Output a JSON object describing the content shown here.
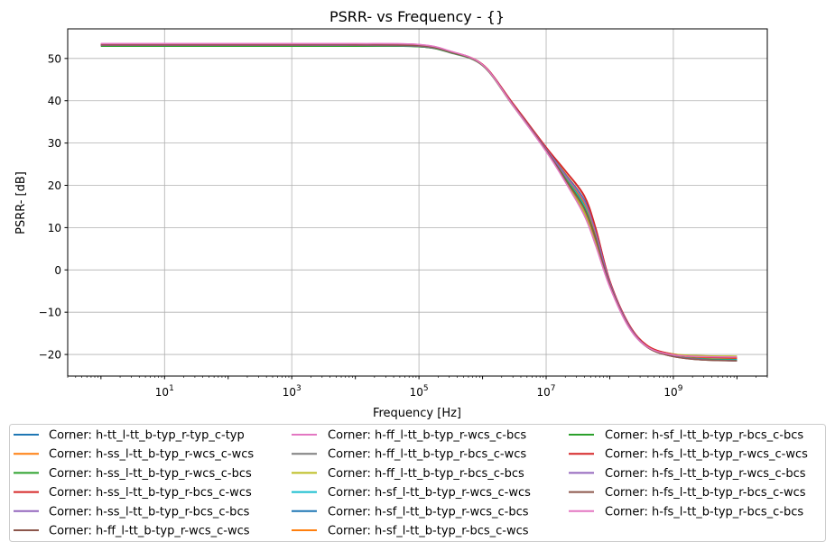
{
  "chart_data": {
    "type": "line",
    "title": "PSRR- vs Frequency - {}",
    "xlabel": "Frequency [Hz]",
    "ylabel": "PSRR- [dB]",
    "xscale": "log",
    "xlim": [
      0.3,
      30000000000
    ],
    "ylim": [
      -25.1,
      57
    ],
    "grid": true,
    "legend_placement": "bottom, below axes, 3 columns",
    "x_ticks": [
      {
        "value": 10,
        "base": "10",
        "exp": "1"
      },
      {
        "value": 1000,
        "base": "10",
        "exp": "3"
      },
      {
        "value": 100000,
        "base": "10",
        "exp": "5"
      },
      {
        "value": 10000000,
        "base": "10",
        "exp": "7"
      },
      {
        "value": 1000000000,
        "base": "10",
        "exp": "9"
      }
    ],
    "y_ticks": [
      {
        "value": -20,
        "label": "−20"
      },
      {
        "value": -10,
        "label": "−10"
      },
      {
        "value": 0,
        "label": "0"
      },
      {
        "value": 10,
        "label": "10"
      },
      {
        "value": 20,
        "label": "20"
      },
      {
        "value": 30,
        "label": "30"
      },
      {
        "value": 40,
        "label": "40"
      },
      {
        "value": 50,
        "label": "50"
      }
    ],
    "x": [
      1,
      10,
      100,
      1000,
      10000,
      100000,
      300000,
      1000000,
      3000000,
      10000000,
      20000000,
      40000000,
      60000000,
      100000000,
      200000000,
      400000000,
      1000000000,
      3000000000,
      10000000000
    ],
    "series": [
      {
        "name": "Corner: h-tt_l-tt_b-typ_r-typ_c-typ",
        "color": "#1f77b4",
        "values": [
          53.2,
          53.2,
          53.2,
          53.2,
          53.2,
          53.0,
          51.6,
          48.5,
          39.2,
          28.6,
          22.0,
          15.5,
          8.0,
          -3.0,
          -13.2,
          -18.2,
          -20.2,
          -21.0,
          -21.2
        ]
      },
      {
        "name": "Corner: h-ss_l-tt_b-typ_r-wcs_c-wcs",
        "color": "#ff7f0e",
        "values": [
          53.4,
          53.4,
          53.4,
          53.4,
          53.4,
          53.2,
          51.7,
          48.5,
          39.2,
          28.8,
          22.8,
          16.5,
          9.0,
          -2.8,
          -13.0,
          -18.0,
          -20.0,
          -20.6,
          -20.8
        ]
      },
      {
        "name": "Corner: h-ss_l-tt_b-typ_r-wcs_c-bcs",
        "color": "#2ca02c",
        "values": [
          52.9,
          52.9,
          52.9,
          52.9,
          52.9,
          52.8,
          51.5,
          48.4,
          39.1,
          28.5,
          22.2,
          15.8,
          8.5,
          -3.0,
          -13.2,
          -18.2,
          -20.3,
          -21.0,
          -21.3
        ]
      },
      {
        "name": "Corner: h-ss_l-tt_b-typ_r-bcs_c-wcs",
        "color": "#d62728",
        "values": [
          53.3,
          53.3,
          53.3,
          53.3,
          53.3,
          53.1,
          51.7,
          48.6,
          39.4,
          29.0,
          23.5,
          17.5,
          10.0,
          -2.5,
          -12.8,
          -18.0,
          -19.9,
          -20.5,
          -20.7
        ]
      },
      {
        "name": "Corner: h-ss_l-tt_b-typ_r-bcs_c-bcs",
        "color": "#9467bd",
        "values": [
          53.1,
          53.1,
          53.1,
          53.1,
          53.1,
          52.9,
          51.6,
          48.5,
          39.2,
          28.7,
          22.5,
          16.5,
          9.2,
          -2.8,
          -13.0,
          -18.3,
          -20.4,
          -21.2,
          -21.5
        ]
      },
      {
        "name": "Corner: h-ff_l-tt_b-typ_r-wcs_c-wcs",
        "color": "#8c564b",
        "values": [
          53.2,
          53.2,
          53.2,
          53.2,
          53.2,
          53.0,
          51.6,
          48.4,
          39.0,
          28.4,
          21.5,
          14.5,
          7.5,
          -3.3,
          -13.3,
          -18.4,
          -20.5,
          -21.3,
          -21.5
        ]
      },
      {
        "name": "Corner: h-ff_l-tt_b-typ_r-wcs_c-bcs",
        "color": "#e377c2",
        "values": [
          53.5,
          53.5,
          53.5,
          53.5,
          53.5,
          53.3,
          51.8,
          48.5,
          38.9,
          28.0,
          20.8,
          12.8,
          5.8,
          -4.0,
          -13.6,
          -18.3,
          -20.0,
          -20.4,
          -20.5
        ]
      },
      {
        "name": "Corner: h-ff_l-tt_b-typ_r-bcs_c-wcs",
        "color": "#7f7f7f",
        "values": [
          53.0,
          53.0,
          53.0,
          53.0,
          53.0,
          52.8,
          51.4,
          48.3,
          38.8,
          28.1,
          21.0,
          13.5,
          6.5,
          -3.8,
          -13.5,
          -18.4,
          -20.4,
          -21.0,
          -21.2
        ]
      },
      {
        "name": "Corner: h-ff_l-tt_b-typ_r-bcs_c-bcs",
        "color": "#bcbd22",
        "values": [
          53.3,
          53.3,
          53.3,
          53.3,
          53.3,
          53.1,
          51.6,
          48.4,
          38.9,
          28.2,
          21.2,
          13.5,
          6.5,
          -3.7,
          -13.4,
          -18.2,
          -19.9,
          -20.3,
          -20.4
        ]
      },
      {
        "name": "Corner: h-sf_l-tt_b-typ_r-wcs_c-wcs",
        "color": "#17becf",
        "values": [
          53.2,
          53.2,
          53.2,
          53.2,
          53.2,
          53.0,
          51.6,
          48.5,
          39.1,
          28.5,
          21.8,
          15.0,
          7.8,
          -3.2,
          -13.2,
          -18.2,
          -20.2,
          -20.9,
          -21.1
        ]
      },
      {
        "name": "Corner: h-sf_l-tt_b-typ_r-wcs_c-bcs",
        "color": "#1f77b4",
        "values": [
          53.2,
          53.2,
          53.2,
          53.2,
          53.2,
          53.0,
          51.6,
          48.5,
          39.2,
          28.7,
          22.6,
          16.5,
          9.0,
          -2.9,
          -13.1,
          -18.2,
          -20.3,
          -21.1,
          -21.4
        ]
      },
      {
        "name": "Corner: h-sf_l-tt_b-typ_r-bcs_c-wcs",
        "color": "#ff7f0e",
        "values": [
          53.3,
          53.3,
          53.3,
          53.3,
          53.3,
          53.1,
          51.7,
          48.5,
          39.2,
          28.6,
          22.3,
          15.8,
          8.5,
          -3.0,
          -13.1,
          -18.1,
          -20.1,
          -20.7,
          -20.9
        ]
      },
      {
        "name": "Corner: h-sf_l-tt_b-typ_r-bcs_c-bcs",
        "color": "#2ca02c",
        "values": [
          52.9,
          52.9,
          52.9,
          52.9,
          52.9,
          52.8,
          51.5,
          48.4,
          39.0,
          28.4,
          21.6,
          14.6,
          7.6,
          -3.3,
          -13.3,
          -18.3,
          -20.4,
          -21.1,
          -21.4
        ]
      },
      {
        "name": "Corner: h-fs_l-tt_b-typ_r-wcs_c-wcs",
        "color": "#d62728",
        "values": [
          53.3,
          53.3,
          53.3,
          53.3,
          53.3,
          53.1,
          51.7,
          48.6,
          39.4,
          29.0,
          23.4,
          17.3,
          9.8,
          -2.6,
          -12.9,
          -18.0,
          -20.0,
          -20.6,
          -20.8
        ]
      },
      {
        "name": "Corner: h-fs_l-tt_b-typ_r-wcs_c-bcs",
        "color": "#9467bd",
        "values": [
          53.1,
          53.1,
          53.1,
          53.1,
          53.1,
          52.9,
          51.6,
          48.5,
          39.1,
          28.6,
          22.4,
          16.2,
          8.9,
          -2.9,
          -13.1,
          -18.3,
          -20.4,
          -21.2,
          -21.5
        ]
      },
      {
        "name": "Corner: h-fs_l-tt_b-typ_r-bcs_c-wcs",
        "color": "#8c564b",
        "values": [
          53.2,
          53.2,
          53.2,
          53.2,
          53.2,
          53.0,
          51.6,
          48.4,
          39.0,
          28.3,
          21.4,
          14.3,
          7.3,
          -3.4,
          -13.4,
          -18.4,
          -20.5,
          -21.3,
          -21.5
        ]
      },
      {
        "name": "Corner: h-fs_l-tt_b-typ_r-bcs_c-bcs",
        "color": "#e377c2",
        "values": [
          53.5,
          53.5,
          53.5,
          53.5,
          53.5,
          53.3,
          51.8,
          48.5,
          38.9,
          28.0,
          20.8,
          12.8,
          5.8,
          -4.0,
          -13.6,
          -18.3,
          -20.1,
          -20.5,
          -20.6
        ]
      }
    ]
  }
}
